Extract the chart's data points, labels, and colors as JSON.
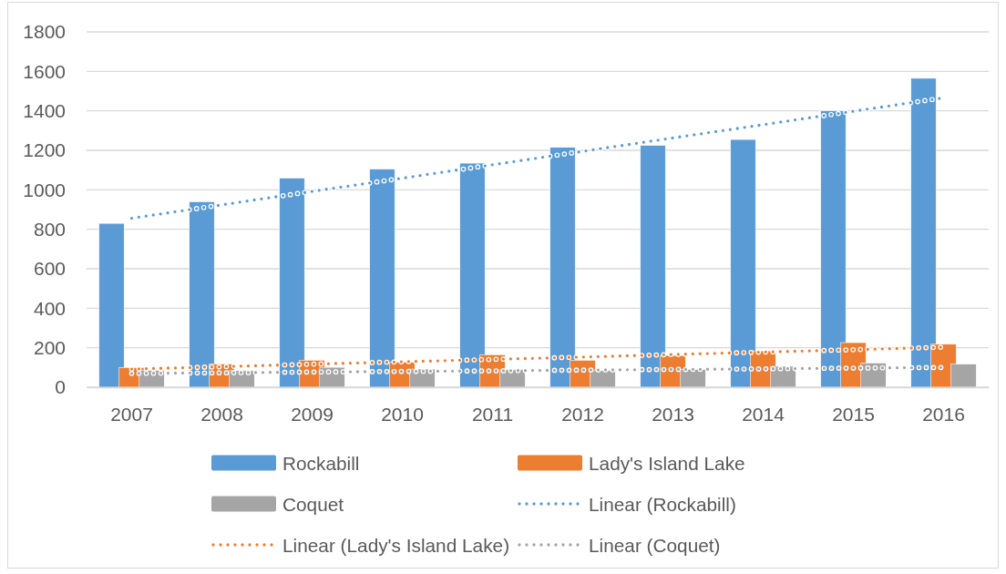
{
  "chart_data": {
    "type": "bar",
    "categories": [
      "2007",
      "2008",
      "2009",
      "2010",
      "2011",
      "2012",
      "2013",
      "2014",
      "2015",
      "2016"
    ],
    "series": [
      {
        "name": "Rockabill",
        "color": "#5b9bd5",
        "values": [
          830,
          940,
          1060,
          1105,
          1135,
          1215,
          1225,
          1255,
          1400,
          1565
        ]
      },
      {
        "name": "Lady's Island Lake",
        "color": "#ed7d31",
        "values": [
          100,
          118,
          137,
          127,
          165,
          137,
          161,
          184,
          226,
          218
        ]
      },
      {
        "name": "Coquet",
        "color": "#a5a5a5",
        "values": [
          86,
          84,
          101,
          92,
          89,
          84,
          91,
          106,
          123,
          117
        ]
      },
      {
        "name": "Linear (Rockabill)",
        "type": "line",
        "color": "#5b9bd5",
        "values": [
          856,
          924,
          992,
          1059,
          1127,
          1195,
          1263,
          1330,
          1398,
          1466
        ]
      },
      {
        "name": "Linear (Lady's Island Lake)",
        "type": "line",
        "color": "#ed7d31",
        "values": [
          92,
          104,
          117,
          129,
          141,
          153,
          166,
          178,
          190,
          203
        ]
      },
      {
        "name": "Linear (Coquet)",
        "type": "line",
        "color": "#a5a5a5",
        "values": [
          70,
          73,
          77,
          80,
          83,
          87,
          90,
          93,
          97,
          100
        ]
      }
    ],
    "line_style": "dotted",
    "ylim": [
      0,
      1800
    ],
    "yticks": [
      0,
      200,
      400,
      600,
      800,
      1000,
      1200,
      1400,
      1600,
      1800
    ],
    "grid": "y",
    "legend": "bottom"
  }
}
